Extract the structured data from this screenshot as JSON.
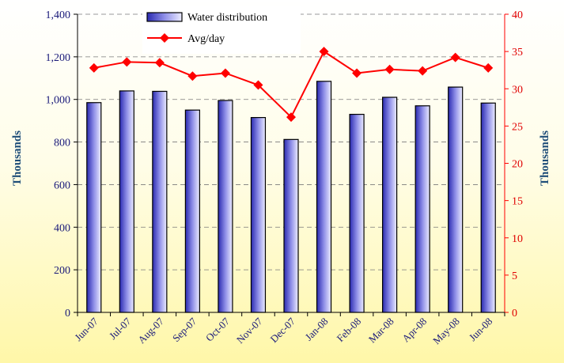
{
  "chart_data": {
    "type": "bar",
    "categories": [
      "Jun-07",
      "Jul-07",
      "Aug-07",
      "Sep-07",
      "Oct-07",
      "Nov-07",
      "Dec-07",
      "Jan-08",
      "Feb-08",
      "Mar-08",
      "Apr-08",
      "May-08",
      "Jun-08"
    ],
    "series": [
      {
        "name": "Water distribution",
        "type": "bar",
        "axis": "left",
        "values": [
          985,
          1040,
          1038,
          950,
          995,
          915,
          812,
          1085,
          930,
          1010,
          970,
          1058,
          983
        ]
      },
      {
        "name": "Avg/day",
        "type": "line",
        "axis": "right",
        "values": [
          32.8,
          33.6,
          33.5,
          31.7,
          32.1,
          30.5,
          26.2,
          35.0,
          32.1,
          32.6,
          32.4,
          34.2,
          32.8
        ]
      }
    ],
    "ylabel_left": "Thousands",
    "ylabel_right": "Thousands",
    "ylim_left": [
      0,
      1400
    ],
    "ylim_right": [
      0,
      40
    ],
    "yticks_left": [
      "0",
      "200",
      "400",
      "600",
      "800",
      "1,000",
      "1,200",
      "1,400"
    ],
    "yticks_right": [
      "0",
      "5",
      "10",
      "15",
      "20",
      "25",
      "30",
      "35",
      "40"
    ],
    "grid": "horizontal dashed",
    "legend_position": "top-center",
    "colors": {
      "bar_dark": "#2a2ab0",
      "bar_light": "#e8e8ff",
      "line": "#ff0000",
      "left_axis": "#1a1a7a",
      "right_axis": "#ff0000",
      "title": "#1f4e79"
    }
  }
}
